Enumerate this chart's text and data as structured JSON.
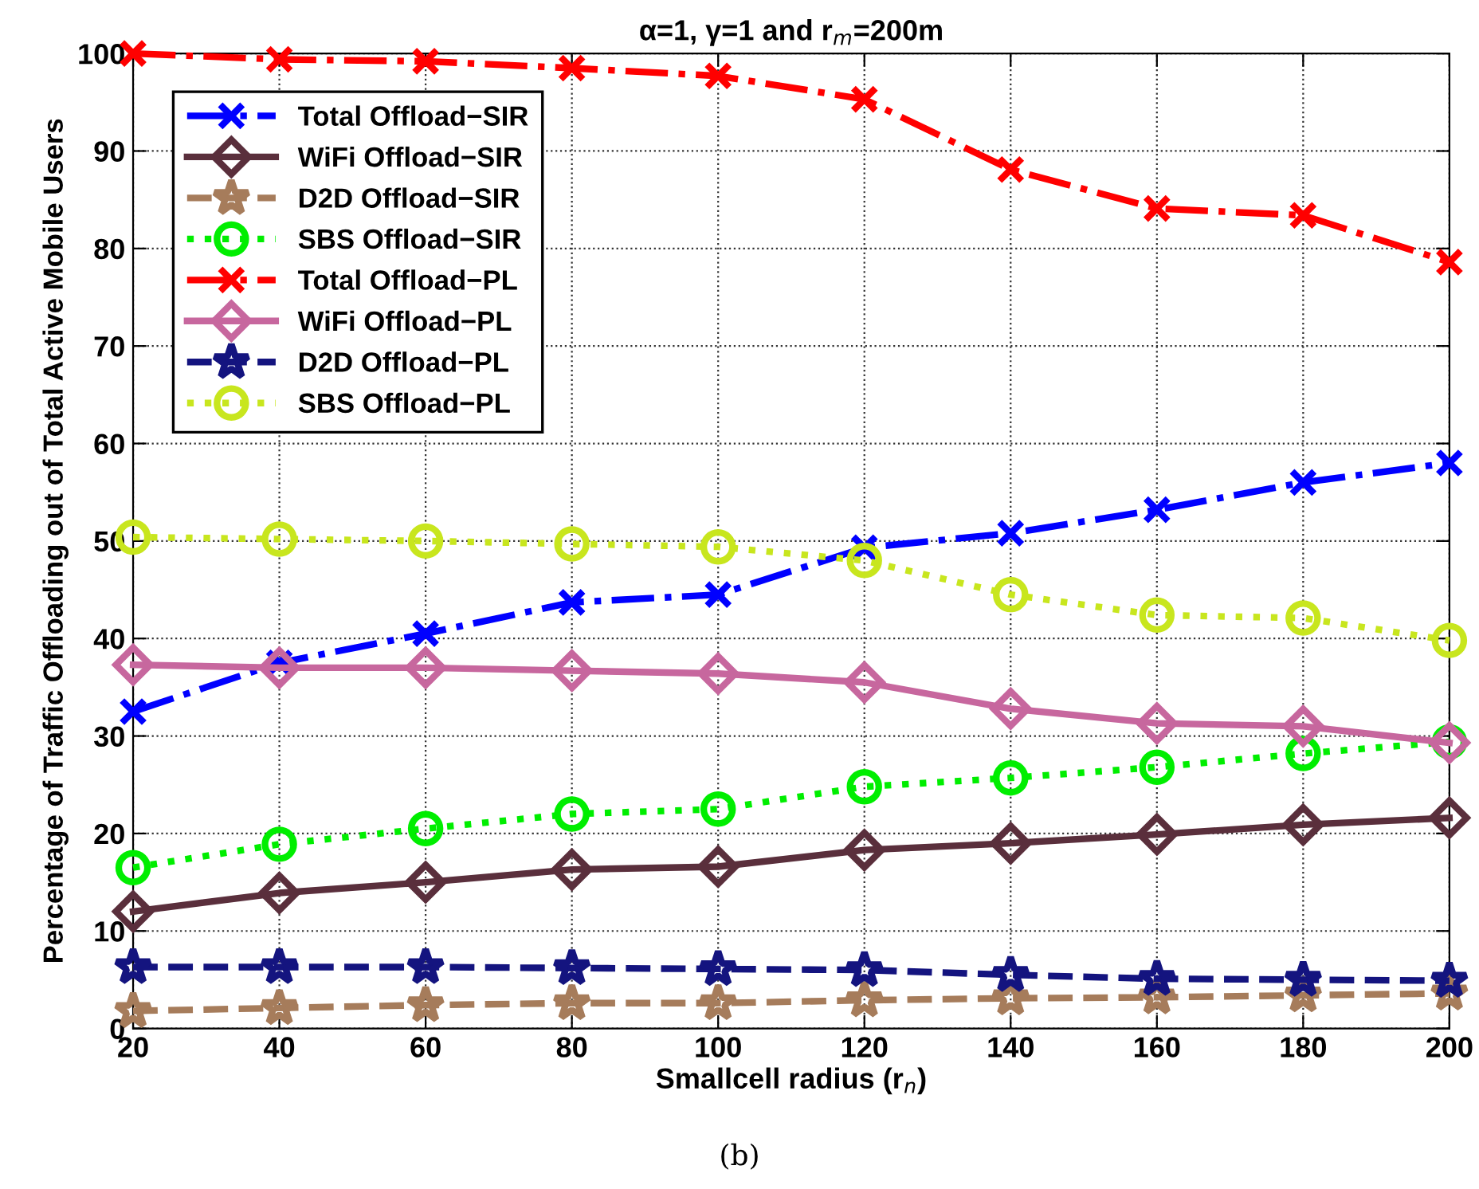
{
  "chart_data": {
    "type": "line",
    "title": "α=1, γ=1 and r$_{m}$=200m",
    "xlabel": "Smallcell radius (r$_{n}$)",
    "ylabel": "Percentage of Traffic Offloading out of Total Active Mobile Users",
    "x": [
      20,
      40,
      60,
      80,
      100,
      120,
      140,
      160,
      180,
      200
    ],
    "xlim": [
      20,
      200
    ],
    "xticks": [
      20,
      40,
      60,
      80,
      100,
      120,
      140,
      160,
      180,
      200
    ],
    "ylim": [
      0,
      100
    ],
    "yticks": [
      0,
      10,
      20,
      30,
      40,
      50,
      60,
      70,
      80,
      90,
      100
    ],
    "grid": true,
    "legend": "top left",
    "annotations": [
      "(b)"
    ],
    "series": [
      {
        "name": "Total Offload−SIR",
        "color": "#0000ff",
        "marker": "cross",
        "line_style": "dashdot",
        "values": [
          32.5,
          37.5,
          40.5,
          43.7,
          44.5,
          49.3,
          50.8,
          53.2,
          56,
          58
        ]
      },
      {
        "name": "WiFi Offload−SIR",
        "color": "#5a2f3c",
        "marker": "diamond",
        "line_style": "solid",
        "values": [
          12,
          13.9,
          15,
          16.3,
          16.6,
          18.3,
          19,
          19.9,
          20.9,
          21.6
        ]
      },
      {
        "name": "D2D Offload−SIR",
        "color": "#a67c5b",
        "marker": "star",
        "line_style": "dashed",
        "values": [
          1.8,
          2.1,
          2.4,
          2.6,
          2.6,
          2.9,
          3.1,
          3.2,
          3.4,
          3.6
        ]
      },
      {
        "name": "SBS Offload−SIR",
        "color": "#00ee00",
        "marker": "circle",
        "line_style": "dotted",
        "values": [
          16.5,
          18.9,
          20.5,
          22,
          22.5,
          24.8,
          25.7,
          26.8,
          28.2,
          29.4
        ]
      },
      {
        "name": "Total Offload−PL",
        "color": "#ff0000",
        "marker": "cross",
        "line_style": "dashdot",
        "values": [
          100,
          99.4,
          99.2,
          98.5,
          97.7,
          95.3,
          88.1,
          84.1,
          83.4,
          78.6
        ]
      },
      {
        "name": "WiFi Offload−PL",
        "color": "#c7679e",
        "marker": "diamond",
        "line_style": "solid",
        "values": [
          37.3,
          37,
          37,
          36.7,
          36.4,
          35.5,
          32.8,
          31.3,
          31,
          29.3
        ]
      },
      {
        "name": "D2D Offload−PL",
        "color": "#14147f",
        "marker": "star",
        "line_style": "dashed",
        "values": [
          6.3,
          6.3,
          6.3,
          6.2,
          6.1,
          6,
          5.5,
          5.1,
          5,
          4.9
        ]
      },
      {
        "name": "SBS Offload−PL",
        "color": "#c8e61e",
        "marker": "circle",
        "line_style": "dotted",
        "values": [
          50.4,
          50.2,
          50,
          49.7,
          49.4,
          48,
          44.5,
          42.4,
          42.1,
          39.8
        ]
      }
    ]
  }
}
